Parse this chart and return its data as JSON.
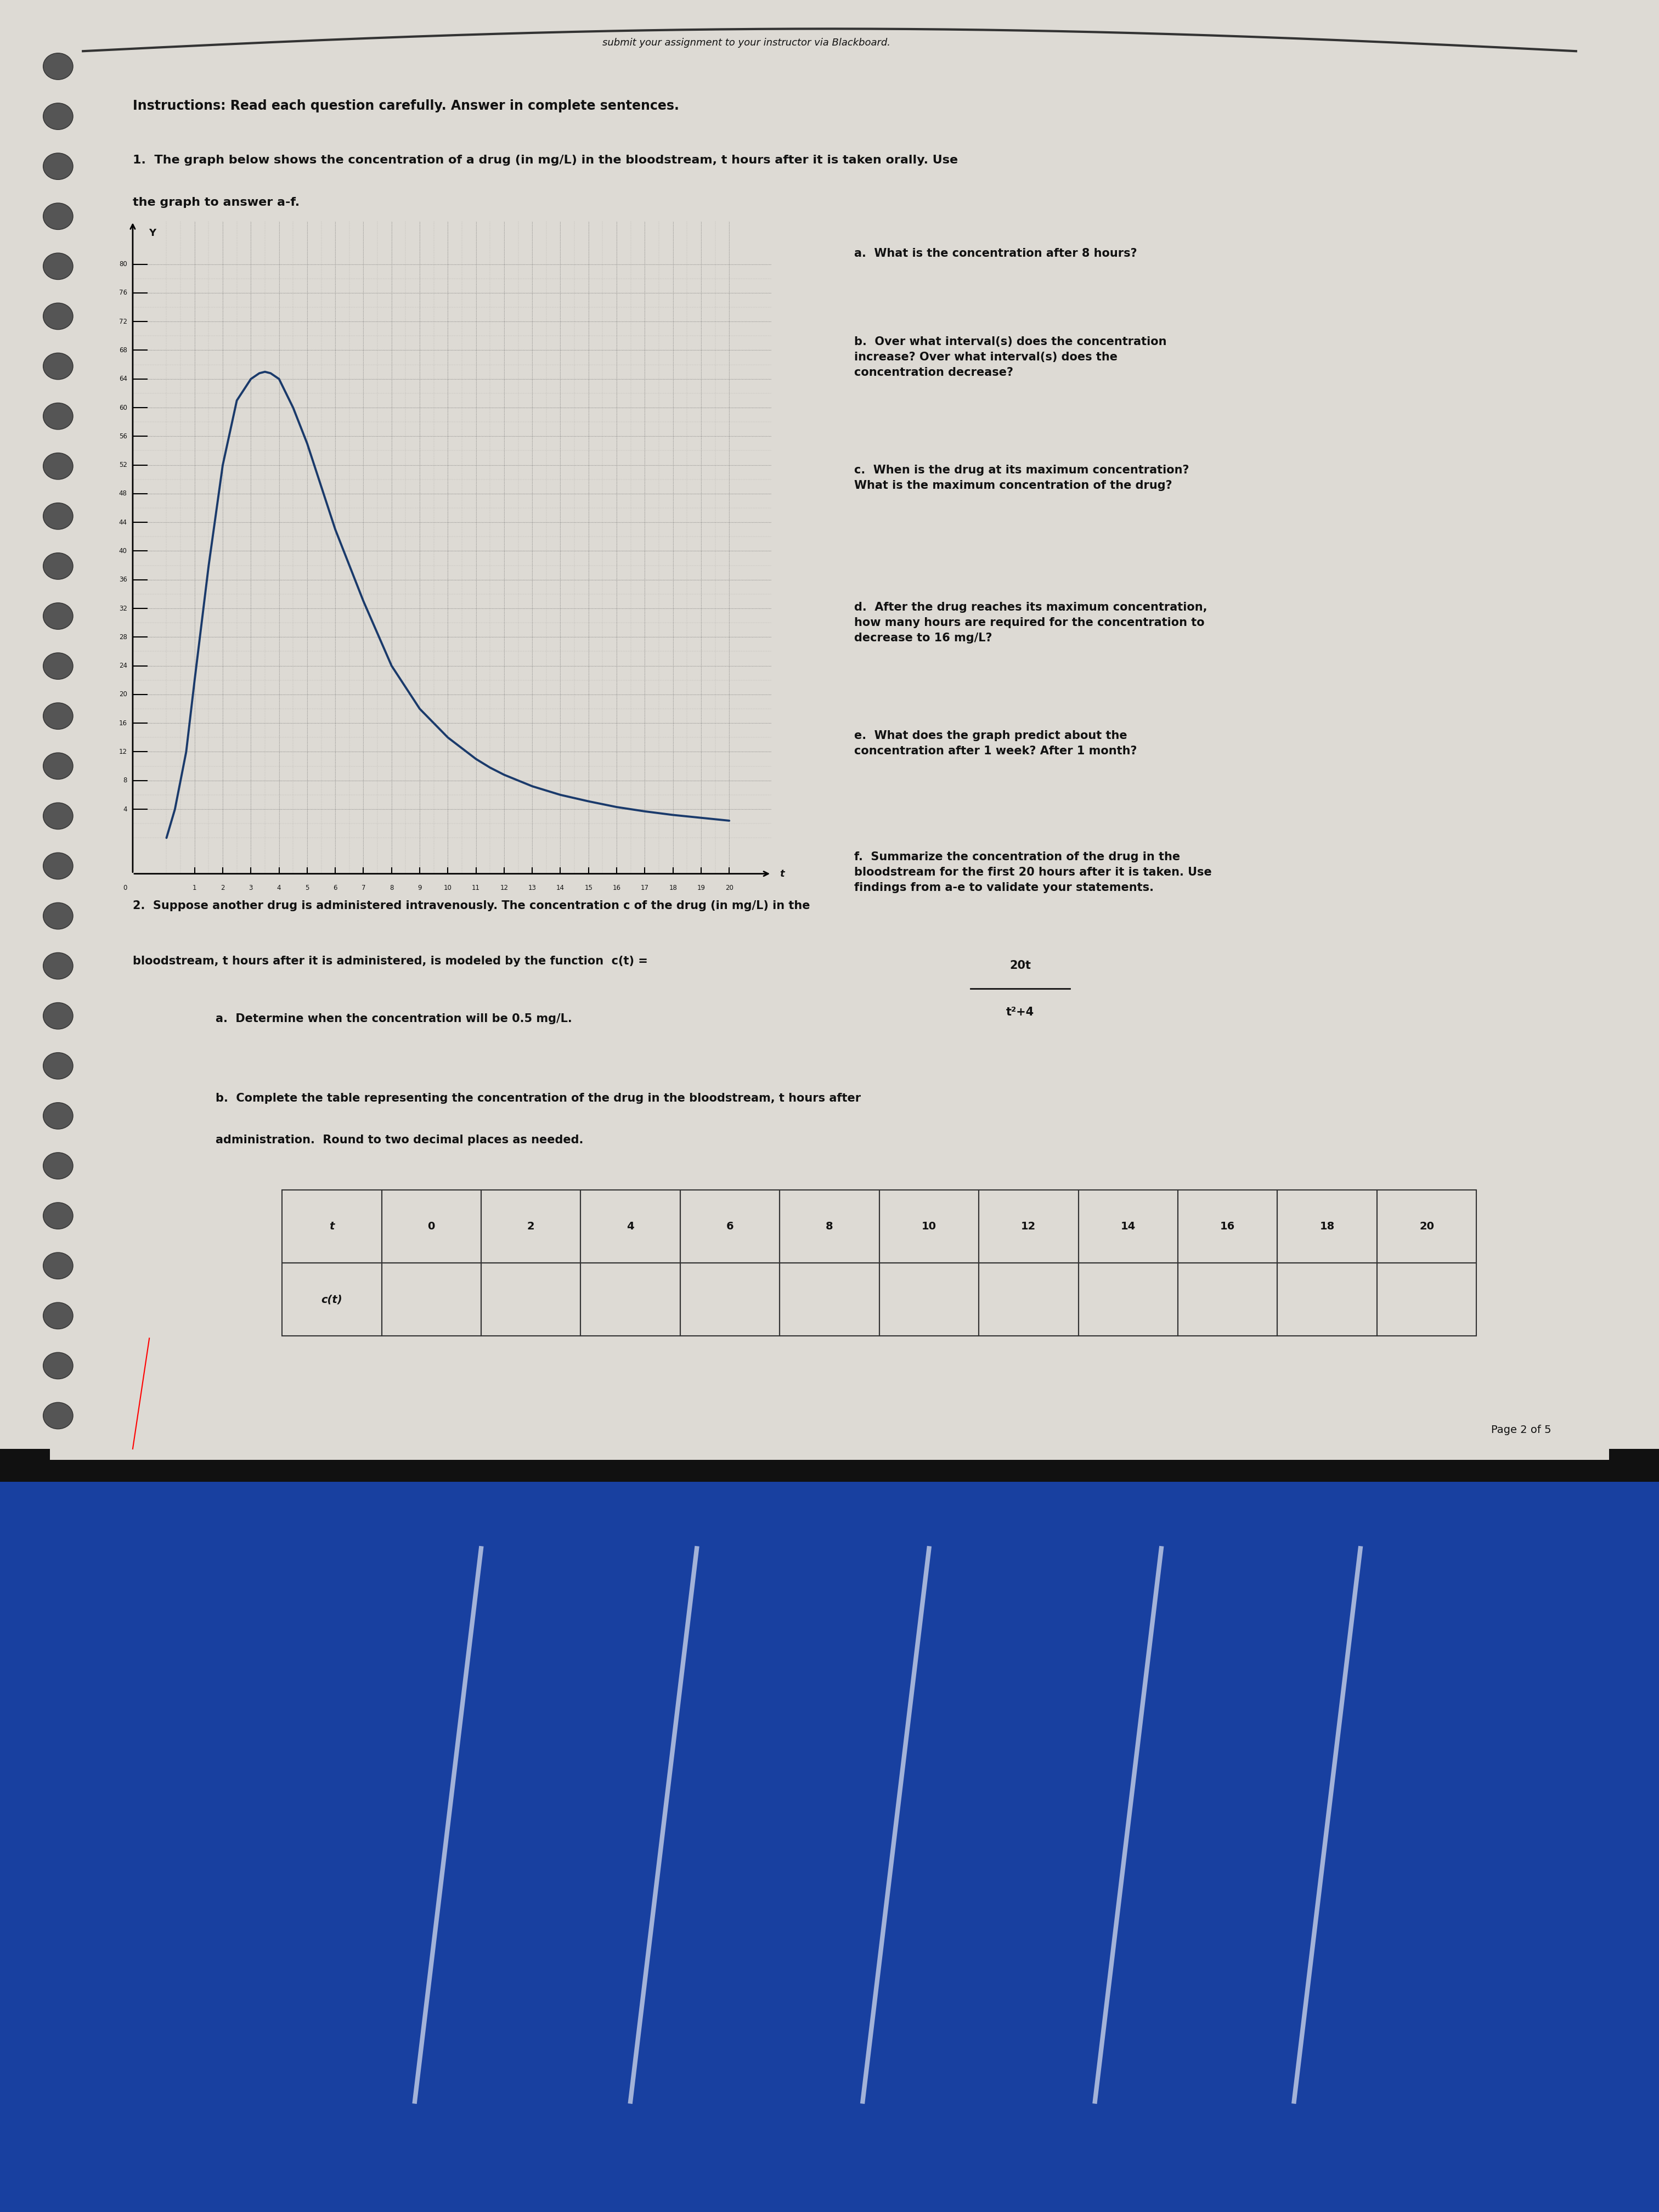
{
  "page_bg": "#d8d4ce",
  "paper_bg": "#dddad4",
  "fabric_top": "#1a3a8a",
  "fabric_bg": "#1a3a8a",
  "instructions": "Instructions: Read each question carefully. Answer in complete sentences.",
  "problem1_line1": "1.  The graph below shows the concentration of a drug (in mg/L) in the bloodstream, t hours after it is taken orally. Use",
  "problem1_line2": "the graph to answer a-f.",
  "problem2_text": "2.  Suppose another drug is administered intravenously. The concentration c of the drug (in mg/L) in the",
  "problem2_line2": "bloodstream, t hours after it is administered, is modeled by the function  c(t) =",
  "fraction_num": "20t",
  "fraction_den": "t²+4",
  "qa_text": [
    "a.  What is the concentration after 8 hours?",
    "b.  Over what interval(s) does the concentration\nincrease? Over what interval(s) does the\nconcentration decrease?",
    "c.  When is the drug at its maximum concentration?\nWhat is the maximum concentration of the drug?",
    "d.  After the drug reaches its maximum concentration,\nhow many hours are required for the concentration to\ndecrease to 16 mg/L?",
    "e.  What does the graph predict about the\nconcentration after 1 week? After 1 month?",
    "f.  Summarize the concentration of the drug in the\nbloodstream for the first 20 hours after it is taken. Use\nfindings from a-e to validate your statements."
  ],
  "prob2a_text": "a.  Determine when the concentration will be 0.5 mg/L.",
  "prob2b_line1": "b.  Complete the table representing the concentration of the drug in the bloodstream, t hours after",
  "prob2b_line2": "administration.  Round to two decimal places as needed.",
  "table_t": [
    "t",
    "0",
    "2",
    "4",
    "6",
    "8",
    "10",
    "12",
    "14",
    "16",
    "18",
    "20"
  ],
  "table_row2": [
    "c(t)",
    "",
    "",
    "",
    "",
    "",
    "",
    "",
    "",
    "",
    "",
    ""
  ],
  "page_num": "Page 2 of 5",
  "yticks": [
    4,
    8,
    12,
    16,
    20,
    24,
    28,
    32,
    36,
    40,
    44,
    48,
    52,
    56,
    60,
    64,
    68,
    72,
    76,
    80
  ],
  "xticks": [
    1,
    2,
    3,
    4,
    5,
    6,
    7,
    8,
    9,
    10,
    11,
    12,
    13,
    14,
    15,
    16,
    17,
    18,
    19,
    20
  ],
  "curve_color": "#1a3a6b",
  "grid_color": "#777777",
  "text_color": "#111111",
  "curve_x": [
    0,
    0.3,
    0.7,
    1.0,
    1.5,
    2.0,
    2.5,
    3.0,
    3.3,
    3.5,
    3.7,
    4.0,
    4.5,
    5.0,
    5.5,
    6.0,
    6.5,
    7.0,
    7.5,
    8.0,
    8.5,
    9.0,
    9.5,
    10.0,
    10.5,
    11.0,
    11.5,
    12.0,
    13.0,
    14.0,
    15.0,
    16.0,
    17.0,
    18.0,
    19.0,
    20.0
  ],
  "curve_y": [
    0,
    4,
    12,
    22,
    38,
    52,
    61,
    64,
    64.8,
    65,
    64.8,
    64,
    60,
    55,
    49,
    43,
    38,
    33,
    28.5,
    24,
    21,
    18,
    16,
    14,
    12.5,
    11,
    9.8,
    8.8,
    7.2,
    6.0,
    5.1,
    4.3,
    3.7,
    3.2,
    2.8,
    2.4
  ]
}
